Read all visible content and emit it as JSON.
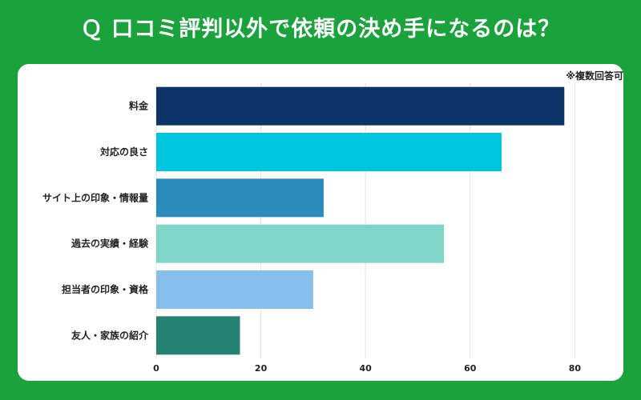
{
  "title": "Ｑ 口コミ評判以外で依頼の決め手になるのは？",
  "note": "※複数回答可",
  "chart_data": {
    "type": "bar",
    "orientation": "horizontal",
    "title": "Ｑ 口コミ評判以外で依頼の決め手になるのは？",
    "categories": [
      "料金",
      "対応の良さ",
      "サイト上の印象・情報量",
      "過去の実績・経験",
      "担当者の印象・資格",
      "友人・家族の紹介"
    ],
    "values": [
      78,
      66,
      32,
      55,
      30,
      16
    ],
    "colors": [
      "#0d3466",
      "#00c5de",
      "#2b8bbd",
      "#7fd6c8",
      "#86bfec",
      "#268373"
    ],
    "xlim": [
      0,
      85
    ],
    "xticks": [
      0,
      20,
      40,
      60,
      80
    ],
    "grid": true,
    "legend": "none"
  }
}
